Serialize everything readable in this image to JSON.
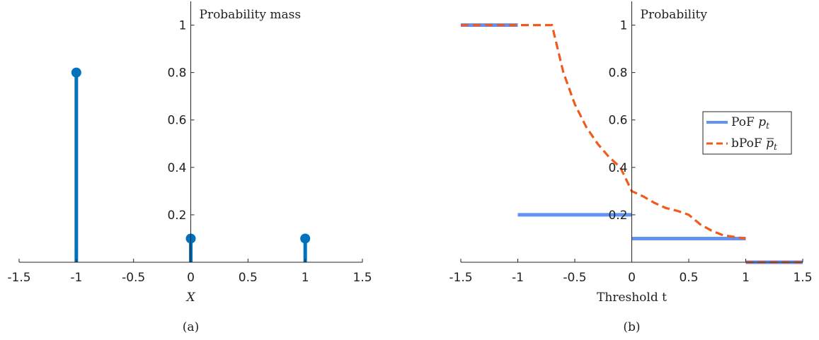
{
  "chart_data": [
    {
      "type": "stem",
      "panel_label": "(a)",
      "title": "Probability mass",
      "xlabel": "X",
      "xlim": [
        -1.5,
        1.5
      ],
      "ylim": [
        0,
        1.1
      ],
      "xticks": [
        -1.5,
        -1,
        -0.5,
        0,
        0.5,
        1,
        1.5
      ],
      "xtick_labels": [
        "-1.5",
        "-1",
        "-0.5",
        "0",
        "0.5",
        "1",
        "1.5"
      ],
      "yticks": [
        0.2,
        0.4,
        0.6,
        0.8,
        1
      ],
      "ytick_labels": [
        "0.2",
        "0.4",
        "0.6",
        "0.8",
        "1"
      ],
      "y_axis_at_x": 0,
      "color": "#0072BD",
      "points": [
        {
          "x": -1,
          "y": 0.8
        },
        {
          "x": 0,
          "y": 0.1
        },
        {
          "x": 1,
          "y": 0.1
        }
      ]
    },
    {
      "type": "line",
      "panel_label": "(b)",
      "title": "Probability",
      "xlabel": "Threshold t",
      "xlim": [
        -1.5,
        1.5
      ],
      "ylim": [
        0,
        1.1
      ],
      "xticks": [
        -1.5,
        -1,
        -0.5,
        0,
        0.5,
        1,
        1.5
      ],
      "xtick_labels": [
        "-1.5",
        "-1",
        "-0.5",
        "0",
        "0.5",
        "1",
        "1.5"
      ],
      "yticks": [
        0.2,
        0.4,
        0.6,
        0.8,
        1
      ],
      "ytick_labels": [
        "0.2",
        "0.4",
        "0.6",
        "0.8",
        "1"
      ],
      "y_axis_at_x": 0,
      "legend_position": "right",
      "series": [
        {
          "name": "PoF p_t",
          "legend_main": "PoF ",
          "legend_sym": "p",
          "legend_sub": "t",
          "color": "#6193F4",
          "dash": "solid",
          "segments": [
            [
              [
                -1.5,
                1
              ],
              [
                -1,
                1
              ]
            ],
            [
              [
                -1,
                0.2
              ],
              [
                0,
                0.2
              ]
            ],
            [
              [
                0,
                0.1
              ],
              [
                1,
                0.1
              ]
            ],
            [
              [
                1,
                0
              ],
              [
                1.5,
                0
              ]
            ]
          ]
        },
        {
          "name": "bPoF p̄_t",
          "legend_main": "bPoF ",
          "legend_sym": "p",
          "legend_sub": "t",
          "color": "#F05A1C",
          "dash": "dashed",
          "segments": [
            [
              [
                -1.5,
                1
              ],
              [
                -0.7,
                1
              ],
              [
                -0.6,
                0.8
              ],
              [
                -0.5,
                0.667
              ],
              [
                -0.4,
                0.571
              ],
              [
                -0.3,
                0.5
              ],
              [
                -0.2,
                0.444
              ],
              [
                -0.1,
                0.4
              ],
              [
                0,
                0.3
              ],
              [
                0.1,
                0.2778
              ],
              [
                0.2,
                0.25
              ],
              [
                0.3,
                0.2286
              ],
              [
                0.4,
                0.2167
              ],
              [
                0.5,
                0.2
              ],
              [
                0.6,
                0.16
              ],
              [
                0.7,
                0.1333
              ],
              [
                0.8,
                0.1143
              ],
              [
                0.9,
                0.1067
              ],
              [
                1,
                0.1
              ]
            ],
            [
              [
                1,
                0
              ],
              [
                1.5,
                0
              ]
            ]
          ]
        }
      ]
    }
  ]
}
